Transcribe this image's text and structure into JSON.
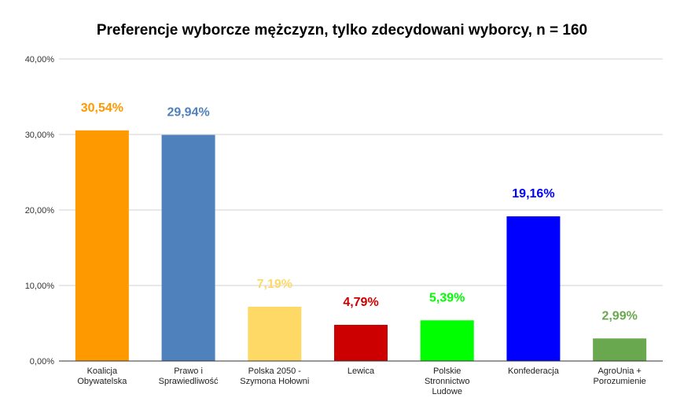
{
  "chart_data": {
    "type": "bar",
    "title": "Preferencje wyborcze mężczyzn, tylko zdecydowani wyborcy, n = 160",
    "xlabel": "",
    "ylabel": "",
    "ylim": [
      0,
      40
    ],
    "yticks": [
      "0,00%",
      "10,00%",
      "20,00%",
      "30,00%",
      "40,00%"
    ],
    "grid": true,
    "legend": "none",
    "categories": [
      [
        "Koalicja",
        "Obywatelska"
      ],
      [
        "Prawo i",
        "Sprawiedliwość"
      ],
      [
        "Polska 2050 -",
        "Szymona Hołowni"
      ],
      [
        "Lewica"
      ],
      [
        "Polskie",
        "Stronnictwo",
        "Ludowe"
      ],
      [
        "Konfederacja"
      ],
      [
        "AgroUnia +",
        "Porozumienie"
      ]
    ],
    "values": [
      30.54,
      29.94,
      7.19,
      4.79,
      5.39,
      19.16,
      2.99
    ],
    "data_labels": [
      "30,54%",
      "29,94%",
      "7,19%",
      "4,79%",
      "5,39%",
      "19,16%",
      "2,99%"
    ],
    "colors": [
      "#ff9900",
      "#4f81bd",
      "#ffd966",
      "#cc0000",
      "#00ff00",
      "#0000ff",
      "#6aa84f"
    ],
    "label_colors": [
      "#ff9900",
      "#4f81bd",
      "#ffd966",
      "#cc0000",
      "#00ff00",
      "#0000ff",
      "#6aa84f"
    ]
  }
}
